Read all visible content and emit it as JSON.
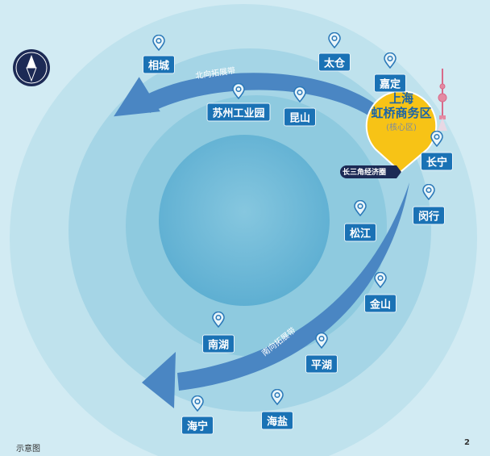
{
  "compass": {
    "icon": "compass-icon"
  },
  "core": {
    "line1": "上海",
    "line2": "虹桥商务区",
    "sub": "(核心区)",
    "color": "#f7c316"
  },
  "ring_tag": "长三角经济圈",
  "arrows": {
    "north": "北向拓展带",
    "south": "南向拓展带",
    "color": "#4a86c3"
  },
  "places": [
    "相城",
    "太仓",
    "嘉定",
    "苏州工业园",
    "昆山",
    "长宁",
    "闵行",
    "松江",
    "金山",
    "南湖",
    "平湖",
    "海宁",
    "海盐"
  ],
  "footer": {
    "note": "示意图",
    "page": "2"
  }
}
